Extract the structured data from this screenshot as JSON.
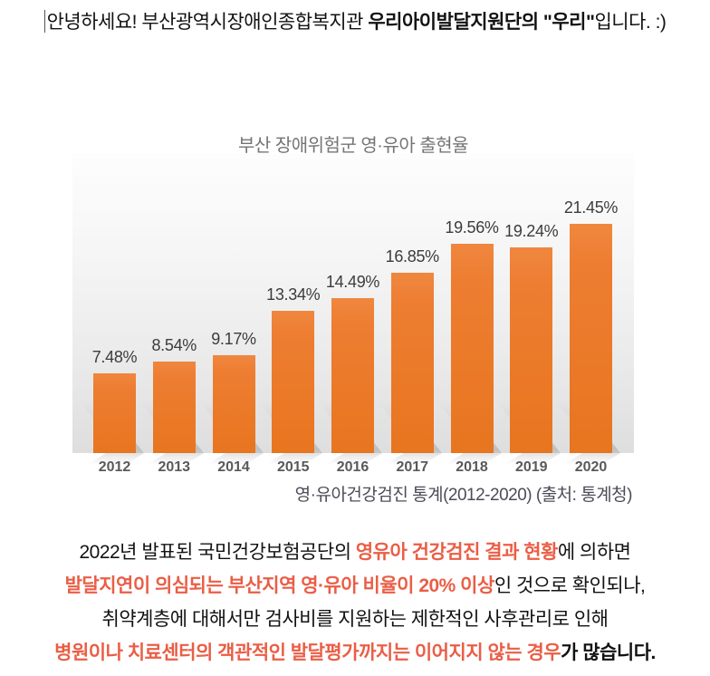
{
  "header": {
    "prefix": "안녕하세요! 부산광역시장애인종합복지관 ",
    "bold": "우리아이발달지원단의 \"우리\"",
    "suffix": "입니다. :)"
  },
  "chart": {
    "title": "부산 장애위험군 영·유아 출현율",
    "caption": "영·유아건강검진 통계(2012-2020) (출처: 통계청)"
  },
  "chart_data": {
    "type": "bar",
    "title": "부산 장애위험군 영·유아 출현율",
    "categories": [
      "2012",
      "2013",
      "2014",
      "2015",
      "2016",
      "2017",
      "2018",
      "2019",
      "2020"
    ],
    "values": [
      7.48,
      8.54,
      9.17,
      13.34,
      14.49,
      16.85,
      19.56,
      19.24,
      21.45
    ],
    "value_labels": [
      "7.48%",
      "8.54%",
      "9.17%",
      "13.34%",
      "14.49%",
      "16.85%",
      "19.56%",
      "19.24%",
      "21.45%"
    ],
    "xlabel": "",
    "ylabel": "",
    "ylim": [
      0,
      24
    ],
    "grid": false,
    "legend": "none",
    "bar_color": "#ED7D31",
    "source_caption": "영·유아건강검진 통계(2012-2020) (출처: 통계청)"
  },
  "paragraph": {
    "lines": [
      {
        "segments": [
          {
            "text": "2022년 발표된 국민건강보험공단의 ",
            "style": "n"
          },
          {
            "text": "영유아 건강검진 결과 현황",
            "style": "r"
          },
          {
            "text": "에 의하면",
            "style": "n"
          }
        ]
      },
      {
        "segments": [
          {
            "text": "발달지연이 의심되는 부산지역 영·유아 비율이 20% 이상",
            "style": "r"
          },
          {
            "text": "인 것으로 확인되나,",
            "style": "n"
          }
        ]
      },
      {
        "segments": [
          {
            "text": "취약계층에 대해서만 검사비를 지원하는 제한적인 사후관리로 인해",
            "style": "n"
          }
        ]
      },
      {
        "segments": [
          {
            "text": "병원이나 치료센터의 객관적인 발달평가까지는 이어지지 않는 경우",
            "style": "r"
          },
          {
            "text": "가 많습니다.",
            "style": "b"
          }
        ]
      }
    ]
  },
  "colors": {
    "bar_orange": "#ED7D31",
    "accent_red": "#EA5E46",
    "title_gray": "#757575",
    "axis_gray": "#595959",
    "caption_gray": "#4C4C59"
  }
}
